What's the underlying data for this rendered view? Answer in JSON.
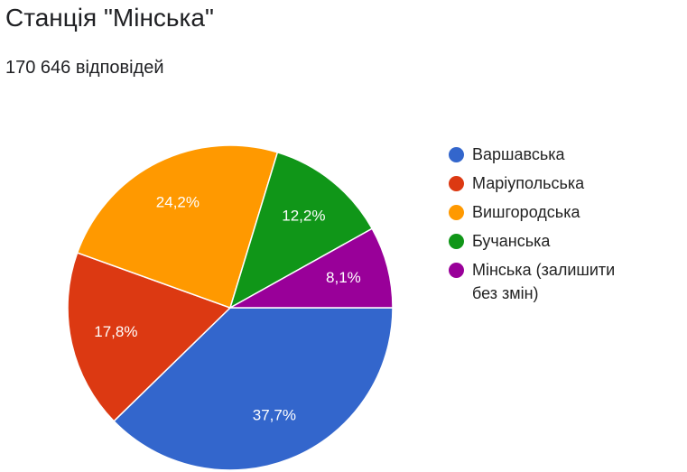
{
  "chart_data": {
    "type": "pie",
    "title": "Станція \"Мінська\"",
    "subtitle": "170 646 відповідей",
    "categories": [
      "Варшавська",
      "Маріупольська",
      "Вишгородська",
      "Бучанська",
      "Мінська (залишити без змін)"
    ],
    "values": [
      37.7,
      17.8,
      24.2,
      12.2,
      8.1
    ],
    "value_labels": [
      "37,7%",
      "17,8%",
      "24,2%",
      "12,2%",
      "8,1%"
    ],
    "colors": [
      "#3366cc",
      "#dc3912",
      "#ff9900",
      "#109618",
      "#990099"
    ],
    "legend": "right"
  }
}
